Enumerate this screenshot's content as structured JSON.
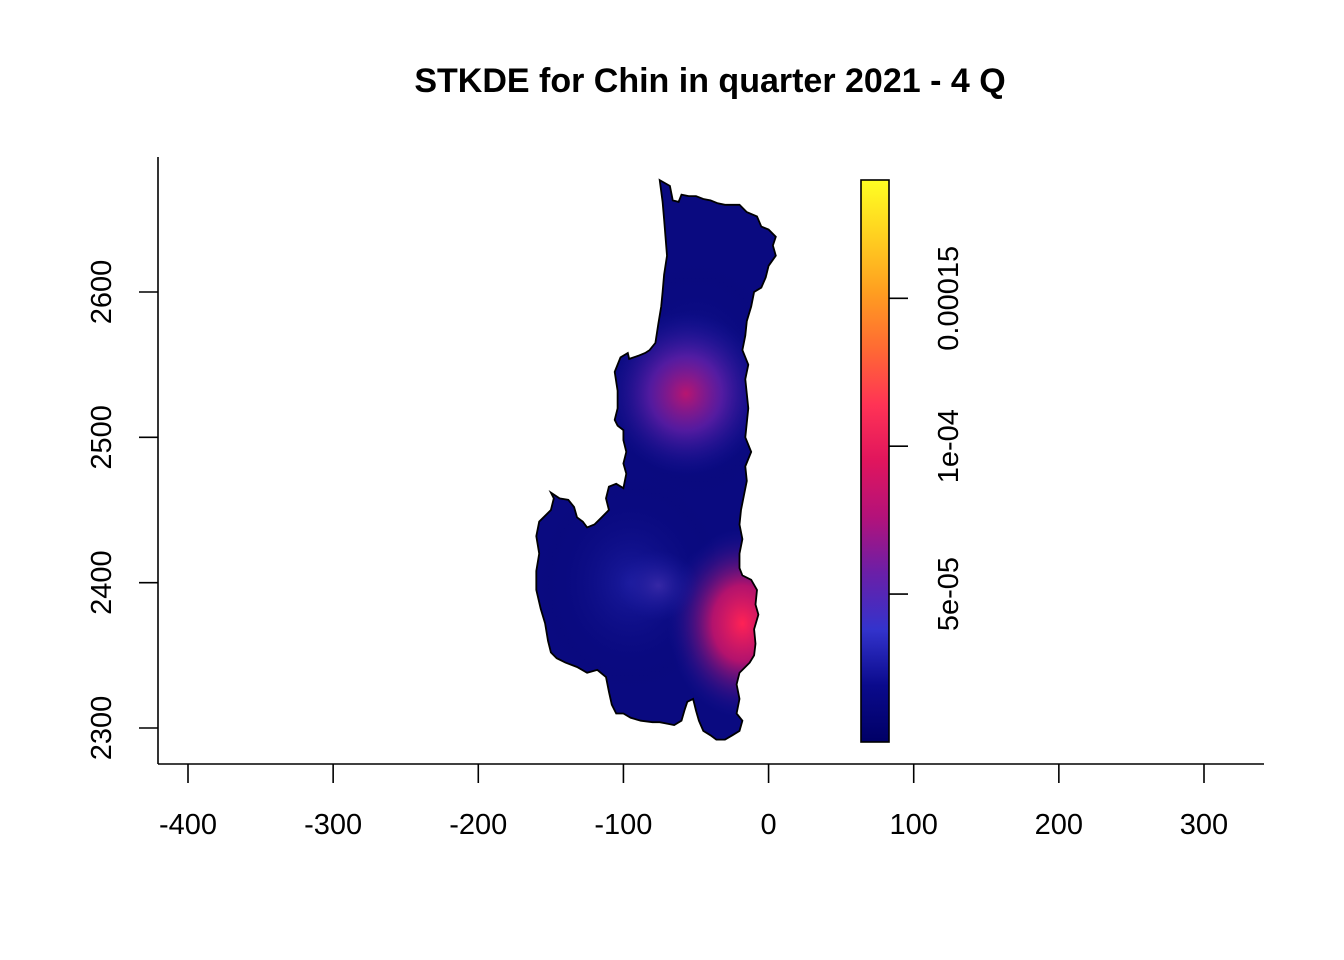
{
  "chart_data": {
    "type": "heatmap",
    "title": "STKDE for Chin in quarter 2021 - 4 Q",
    "xlabel": "",
    "ylabel": "",
    "xlim": [
      -420,
      340
    ],
    "ylim": [
      2276,
      2683
    ],
    "x_ticks": [
      -400,
      -300,
      -200,
      -100,
      0,
      100,
      200,
      300
    ],
    "x_tick_labels": [
      "-400",
      "-300",
      "-200",
      "-100",
      "0",
      "100",
      "200",
      "300"
    ],
    "y_ticks": [
      2300,
      2400,
      2500,
      2600
    ],
    "y_tick_labels": [
      "2300",
      "2400",
      "2500",
      "2600"
    ],
    "region": "Chin",
    "hotspots": [
      {
        "x": -57,
        "y": 2530,
        "density": 9e-05
      },
      {
        "x": -18,
        "y": 2372,
        "density": 0.00011
      },
      {
        "x": -76,
        "y": 2398,
        "density": 3e-05
      }
    ],
    "colorbar": {
      "range": [
        0,
        0.00019
      ],
      "ticks": [
        5e-05,
        0.0001,
        0.00015
      ],
      "tick_labels": [
        "5e-05",
        "1e-04",
        "0.00015"
      ],
      "colors": [
        "#000066",
        "#0a0a8c",
        "#3333cc",
        "#6a1fa8",
        "#b3127a",
        "#e0155d",
        "#ff3355",
        "#ff6a33",
        "#ff9e20",
        "#ffd020",
        "#ffff22"
      ]
    },
    "legend": "right"
  }
}
